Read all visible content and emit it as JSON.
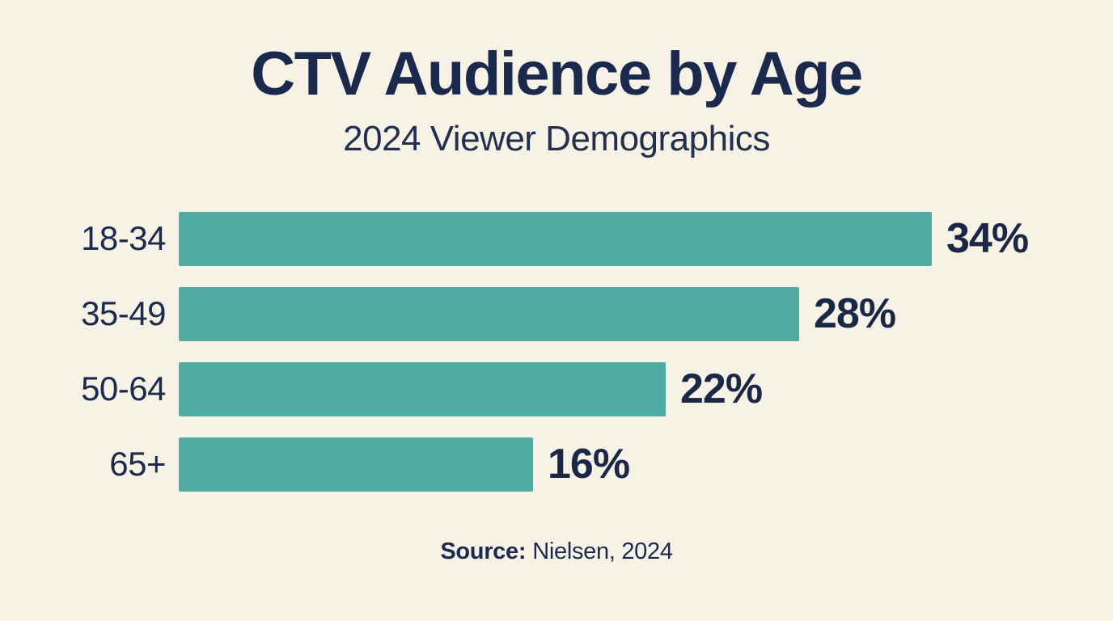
{
  "header": {
    "title": "CTV Audience by Age",
    "subtitle": "2024 Viewer Demographics"
  },
  "footer": {
    "source_label": "Source:",
    "source_text": "Nielsen, 2024"
  },
  "colors": {
    "background": "#f6f2e6",
    "bar": "#52aba3",
    "title_text": "#1b2a4c",
    "body_text": "#1c2b4d"
  },
  "chart_data": {
    "type": "bar",
    "orientation": "horizontal",
    "title": "CTV Audience by Age",
    "subtitle": "2024 Viewer Demographics",
    "categories": [
      "18-34",
      "35-49",
      "50-64",
      "65+"
    ],
    "values": [
      34,
      28,
      22,
      16
    ],
    "value_labels": [
      "34%",
      "28%",
      "22%",
      "16%"
    ],
    "unit": "%",
    "xlabel": "",
    "ylabel": "",
    "xlim": [
      0,
      34
    ],
    "grid": false,
    "legend": false,
    "bar_color": "#52aba3",
    "source": "Source: Nielsen, 2024"
  }
}
